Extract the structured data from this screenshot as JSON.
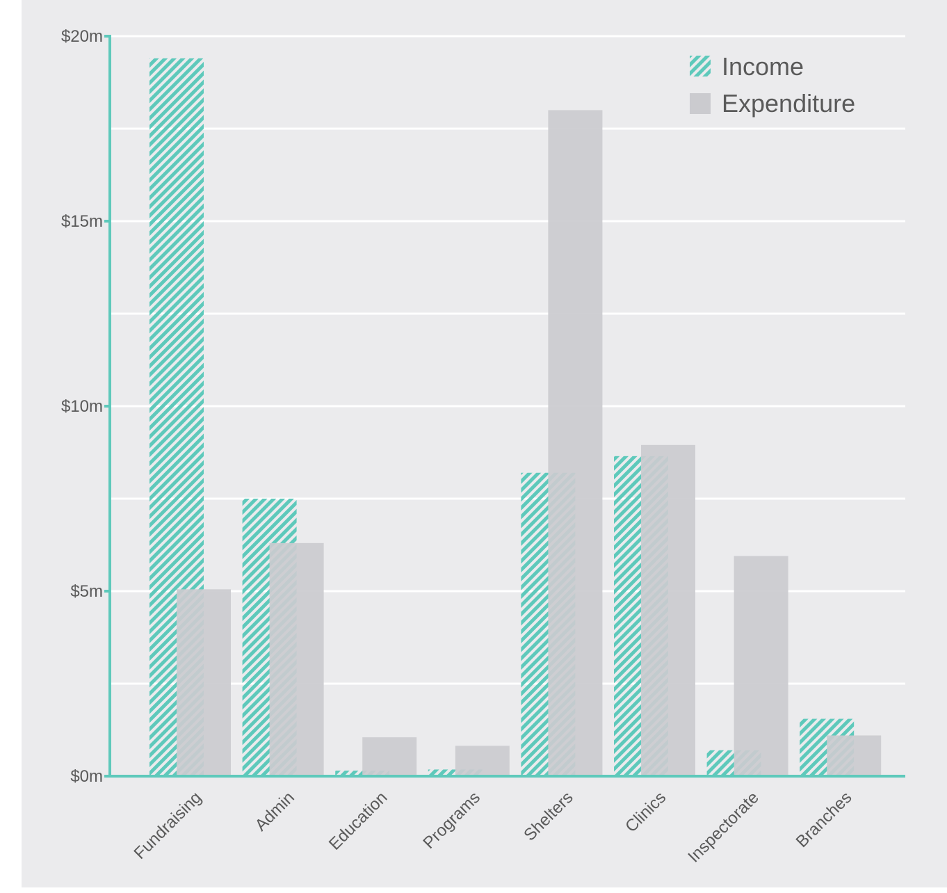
{
  "chart_data": {
    "type": "bar",
    "categories": [
      "Fundraising",
      "Admin",
      "Education",
      "Programs",
      "Shelters",
      "Clinics",
      "Inspectorate",
      "Branches"
    ],
    "series": [
      {
        "name": "Income",
        "values": [
          19.4,
          7.5,
          0.15,
          0.18,
          8.2,
          8.65,
          0.7,
          1.55
        ]
      },
      {
        "name": "Expenditure",
        "values": [
          5.05,
          6.3,
          1.05,
          0.82,
          18.0,
          8.95,
          5.95,
          1.1
        ]
      }
    ],
    "ylim": [
      0,
      20
    ],
    "yticks": [
      {
        "value": 0,
        "label": "$0m"
      },
      {
        "value": 5,
        "label": "$5m"
      },
      {
        "value": 10,
        "label": "$10m"
      },
      {
        "value": 15,
        "label": "$15m"
      },
      {
        "value": 20,
        "label": "$20m"
      }
    ],
    "minor_gridlines": [
      2.5,
      7.5,
      12.5,
      17.5
    ],
    "legend_position": "top-right",
    "colors": {
      "income": "#5ec9bb",
      "expenditure": "#cbcbcf",
      "axis": "#5ec9bb",
      "grid": "#ffffff",
      "text": "#5a5a5a",
      "background": "#ebebed"
    }
  }
}
